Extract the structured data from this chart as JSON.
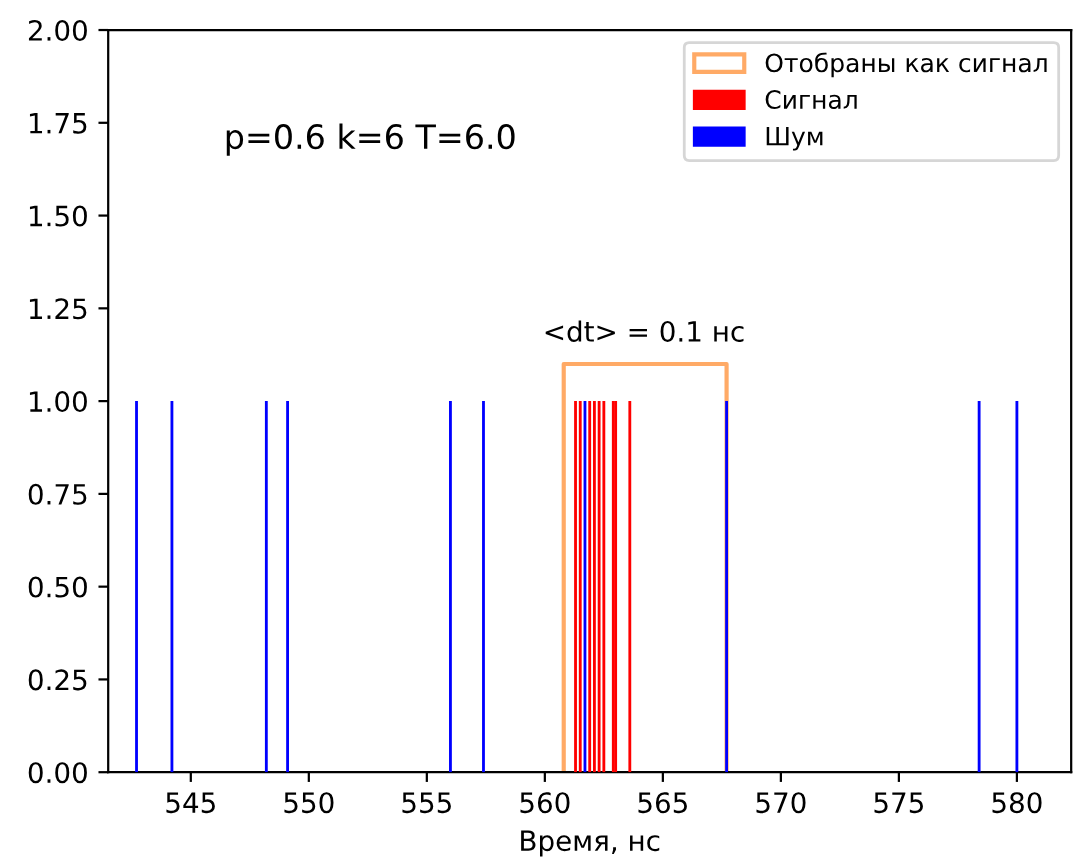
{
  "chart_data": {
    "type": "bar",
    "xlabel": "Время, нс",
    "xlim": [
      541.5,
      582.3
    ],
    "xticks": [
      545,
      550,
      555,
      560,
      565,
      570,
      575,
      580
    ],
    "ylim": [
      0,
      2
    ],
    "yticks": [
      {
        "value": 0,
        "label": "0.00"
      },
      0.25,
      {
        "value": 0.5,
        "label": "0.50"
      },
      0.75,
      {
        "value": 1,
        "label": "1.00"
      },
      1.25,
      {
        "value": 1.5,
        "label": "1.50"
      },
      1.75,
      {
        "value": 2,
        "label": "2.00"
      }
    ],
    "grid": false,
    "legend": "top right",
    "series": [
      {
        "name": "Отобраны как сигнал",
        "type": "line",
        "color": "#ffaa66",
        "x": [
          560.8,
          560.8,
          567.7,
          567.7
        ],
        "values": [
          0,
          1.1,
          1.1,
          0
        ]
      },
      {
        "name": "Сигнал",
        "color": "#ff0000",
        "x": [
          561.3,
          561.5,
          561.9,
          562.1,
          562.3,
          562.5,
          562.9,
          563.0,
          563.6
        ],
        "values": [
          1,
          1,
          1,
          1,
          1,
          1,
          1,
          1,
          1
        ]
      },
      {
        "name": "Шум",
        "color": "#0000ff",
        "x": [
          542.7,
          544.2,
          548.2,
          549.1,
          556.0,
          557.4,
          561.7,
          567.7,
          578.4,
          580.0
        ],
        "values": [
          1,
          1,
          1,
          1,
          1,
          1,
          1,
          1,
          1,
          1
        ]
      }
    ],
    "annotations": [
      "p=0.6 k=6 T=6.0",
      {
        "text": "<dt> = 0.1 нс",
        "x": 564.2,
        "y": 1.1
      }
    ]
  }
}
